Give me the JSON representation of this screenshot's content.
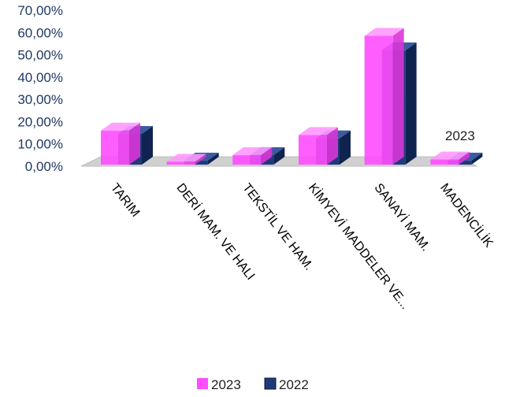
{
  "chart_data": {
    "type": "bar",
    "three_d": true,
    "categories": [
      "TARIM",
      "DERİ MAM. VE HALI",
      "TEKSTİL VE HAM.",
      "KİMYEVİ MADDELER VE...",
      "SANAYİ MAM.",
      "MADENCİLİK"
    ],
    "series": [
      {
        "name": "2023",
        "values": [
          16.0,
          2.0,
          5.0,
          14.0,
          58.5,
          3.0
        ],
        "color": "#ff4dff"
      },
      {
        "name": "2022",
        "values": [
          14.5,
          2.5,
          5.0,
          12.5,
          52.0,
          2.5
        ],
        "color": "#1f3a78"
      }
    ],
    "ylim": [
      0,
      70
    ],
    "y_ticks": [
      "0,00%",
      "10,00%",
      "20,00%",
      "30,00%",
      "40,00%",
      "50,00%",
      "60,00%",
      "70,00%"
    ],
    "annotation": "2023",
    "legend_position": "bottom",
    "grid": false
  }
}
